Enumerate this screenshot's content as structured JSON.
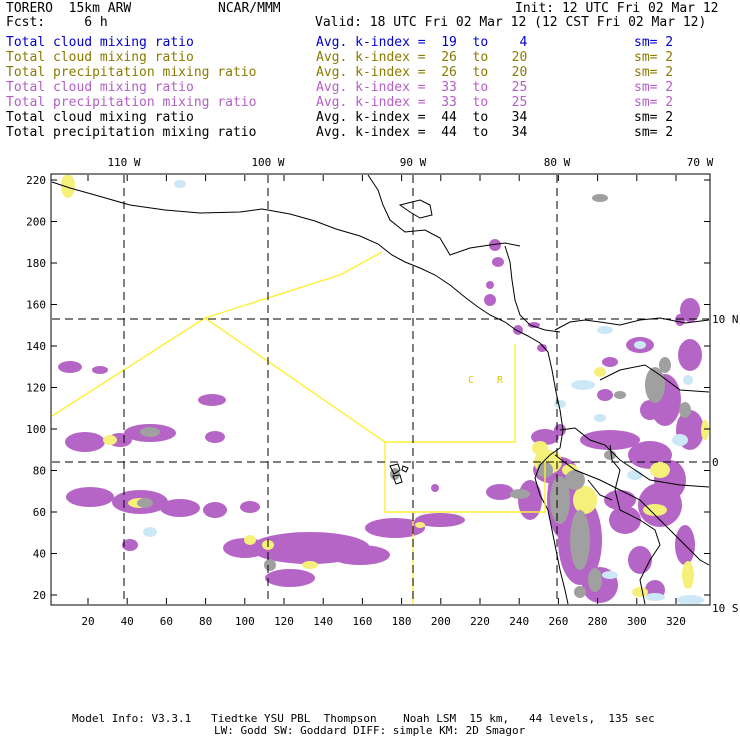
{
  "header": {
    "title": "TORERO  15km ARW",
    "center": "NCAR/MMM",
    "init": "Init: 12 UTC Fri 02 Mar 12",
    "fcst": "Fcst:     6 h",
    "valid": "Valid: 18 UTC Fri 02 Mar 12 (12 CST Fri 02 Mar 12)"
  },
  "legend": [
    {
      "field": "Total cloud mixing ratio",
      "kindex": "Avg. k-index =  19  to    4",
      "sm": "sm= 2",
      "color": "#0000cc"
    },
    {
      "field": "Total cloud mixing ratio",
      "kindex": "Avg. k-index =  26  to   20",
      "sm": "sm= 2",
      "color": "#8a7a00"
    },
    {
      "field": "Total precipitation mixing ratio",
      "kindex": "Avg. k-index =  26  to   20",
      "sm": "sm= 2",
      "color": "#8a7a00"
    },
    {
      "field": "Total cloud mixing ratio",
      "kindex": "Avg. k-index =  33  to   25",
      "sm": "sm= 2",
      "color": "#b35fc6"
    },
    {
      "field": "Total precipitation mixing ratio",
      "kindex": "Avg. k-index =  33  to   25",
      "sm": "sm= 2",
      "color": "#b35fc6"
    },
    {
      "field": "Total cloud mixing ratio",
      "kindex": "Avg. k-index =  44  to   34",
      "sm": "sm= 2",
      "color": "#000000"
    },
    {
      "field": "Total precipitation mixing ratio",
      "kindex": "Avg. k-index =  44  to   34",
      "sm": "sm= 2",
      "color": "#000000"
    }
  ],
  "map": {
    "top_lon_labels": [
      "110 W",
      "100 W",
      "90 W",
      "80 W",
      "70 W"
    ],
    "right_lat_labels": [
      "10 N",
      "0",
      "10 S"
    ],
    "y_ticks": [
      "220",
      "200",
      "180",
      "160",
      "140",
      "120",
      "100",
      "80",
      "60",
      "40",
      "20"
    ],
    "x_ticks": [
      "20",
      "40",
      "60",
      "80",
      "100",
      "120",
      "140",
      "160",
      "180",
      "200",
      "220",
      "240",
      "260",
      "280",
      "300",
      "320"
    ],
    "annotations": [
      "C",
      "R"
    ],
    "colors": {
      "cloud_low": "#cce8f7",
      "cloud_mid": "#f5f07a",
      "cloud_high": "#b565c6",
      "cloud_very_high": "#a0a0a0",
      "flight_track": "#ffee33",
      "coast": "#000000"
    }
  },
  "footer": {
    "line1": "Model Info: V3.3.1   Tiedtke YSU PBL  Thompson    Noah LSM  15 km,   44 levels,  135 sec",
    "line2": "LW: Godd SW: Goddard DIFF: simple KM: 2D Smagor"
  }
}
